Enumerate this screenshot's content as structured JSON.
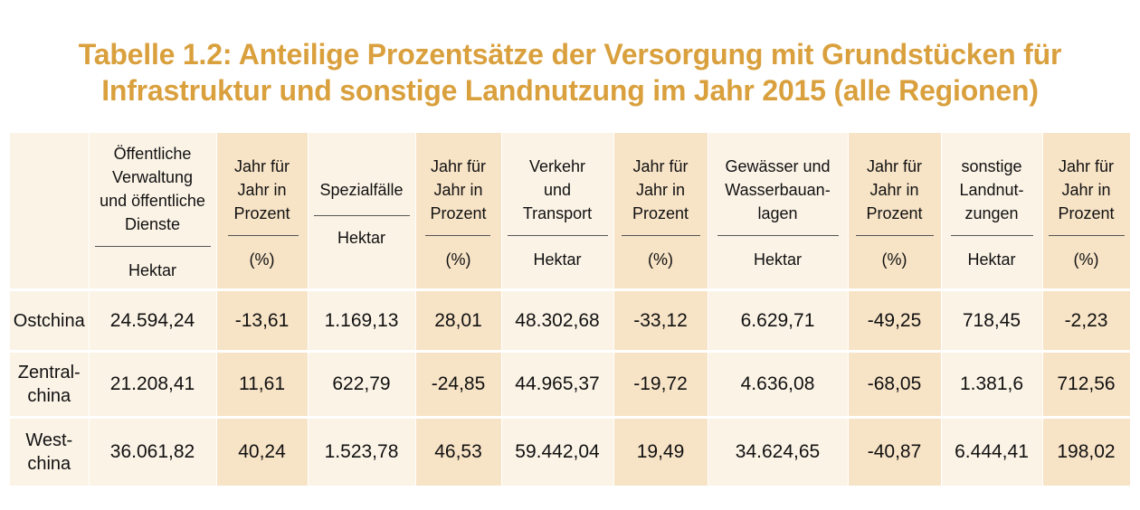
{
  "title": {
    "line1": "Tabelle 1.2: Anteilige Prozentsätze der Versorgung mit Grundstücken  für",
    "line2": "Infrastruktur und sonstige Landnutzung im Jahr 2015 (alle Regionen)"
  },
  "table": {
    "headers": [
      {
        "top": "Öffentliche\nVerwaltung\nund öffentliche\nDienste",
        "bottom": "Hektar"
      },
      {
        "top": "Jahr für\nJahr in\nProzent",
        "bottom": "(%)"
      },
      {
        "top": "Spezialfälle",
        "bottom": "Hektar"
      },
      {
        "top": "Jahr für\nJahr in\nProzent",
        "bottom": "(%)"
      },
      {
        "top": "Verkehr\nund\nTransport",
        "bottom": "Hektar"
      },
      {
        "top": "Jahr für\nJahr in\nProzent",
        "bottom": "(%)"
      },
      {
        "top": "Gewässer und\nWasserbauan-\nlagen",
        "bottom": "Hektar"
      },
      {
        "top": "Jahr für\nJahr in\nProzent",
        "bottom": "(%)"
      },
      {
        "top": "sonstige\nLandnut-\nzungen",
        "bottom": "Hektar"
      },
      {
        "top": "Jahr für\nJahr in\nProzent",
        "bottom": "(%)"
      }
    ],
    "rows": [
      {
        "region": "Ostchina",
        "values": [
          "24.594,24",
          "-13,61",
          "1.169,13",
          "28,01",
          "48.302,68",
          "-33,12",
          "6.629,71",
          "-49,25",
          "718,45",
          "-2,23"
        ]
      },
      {
        "region": "Zentral-\nchina",
        "values": [
          "21.208,41",
          "11,61",
          "622,79",
          "-24,85",
          "44.965,37",
          "-19,72",
          "4.636,08",
          "-68,05",
          "1.381,6",
          "712,56"
        ]
      },
      {
        "region": "West-\nchina",
        "values": [
          "36.061,82",
          "40,24",
          "1.523,78",
          "46,53",
          "59.442,04",
          "19,49",
          "34.624,65",
          "-40,87",
          "6.444,41",
          "198,02"
        ]
      }
    ]
  }
}
